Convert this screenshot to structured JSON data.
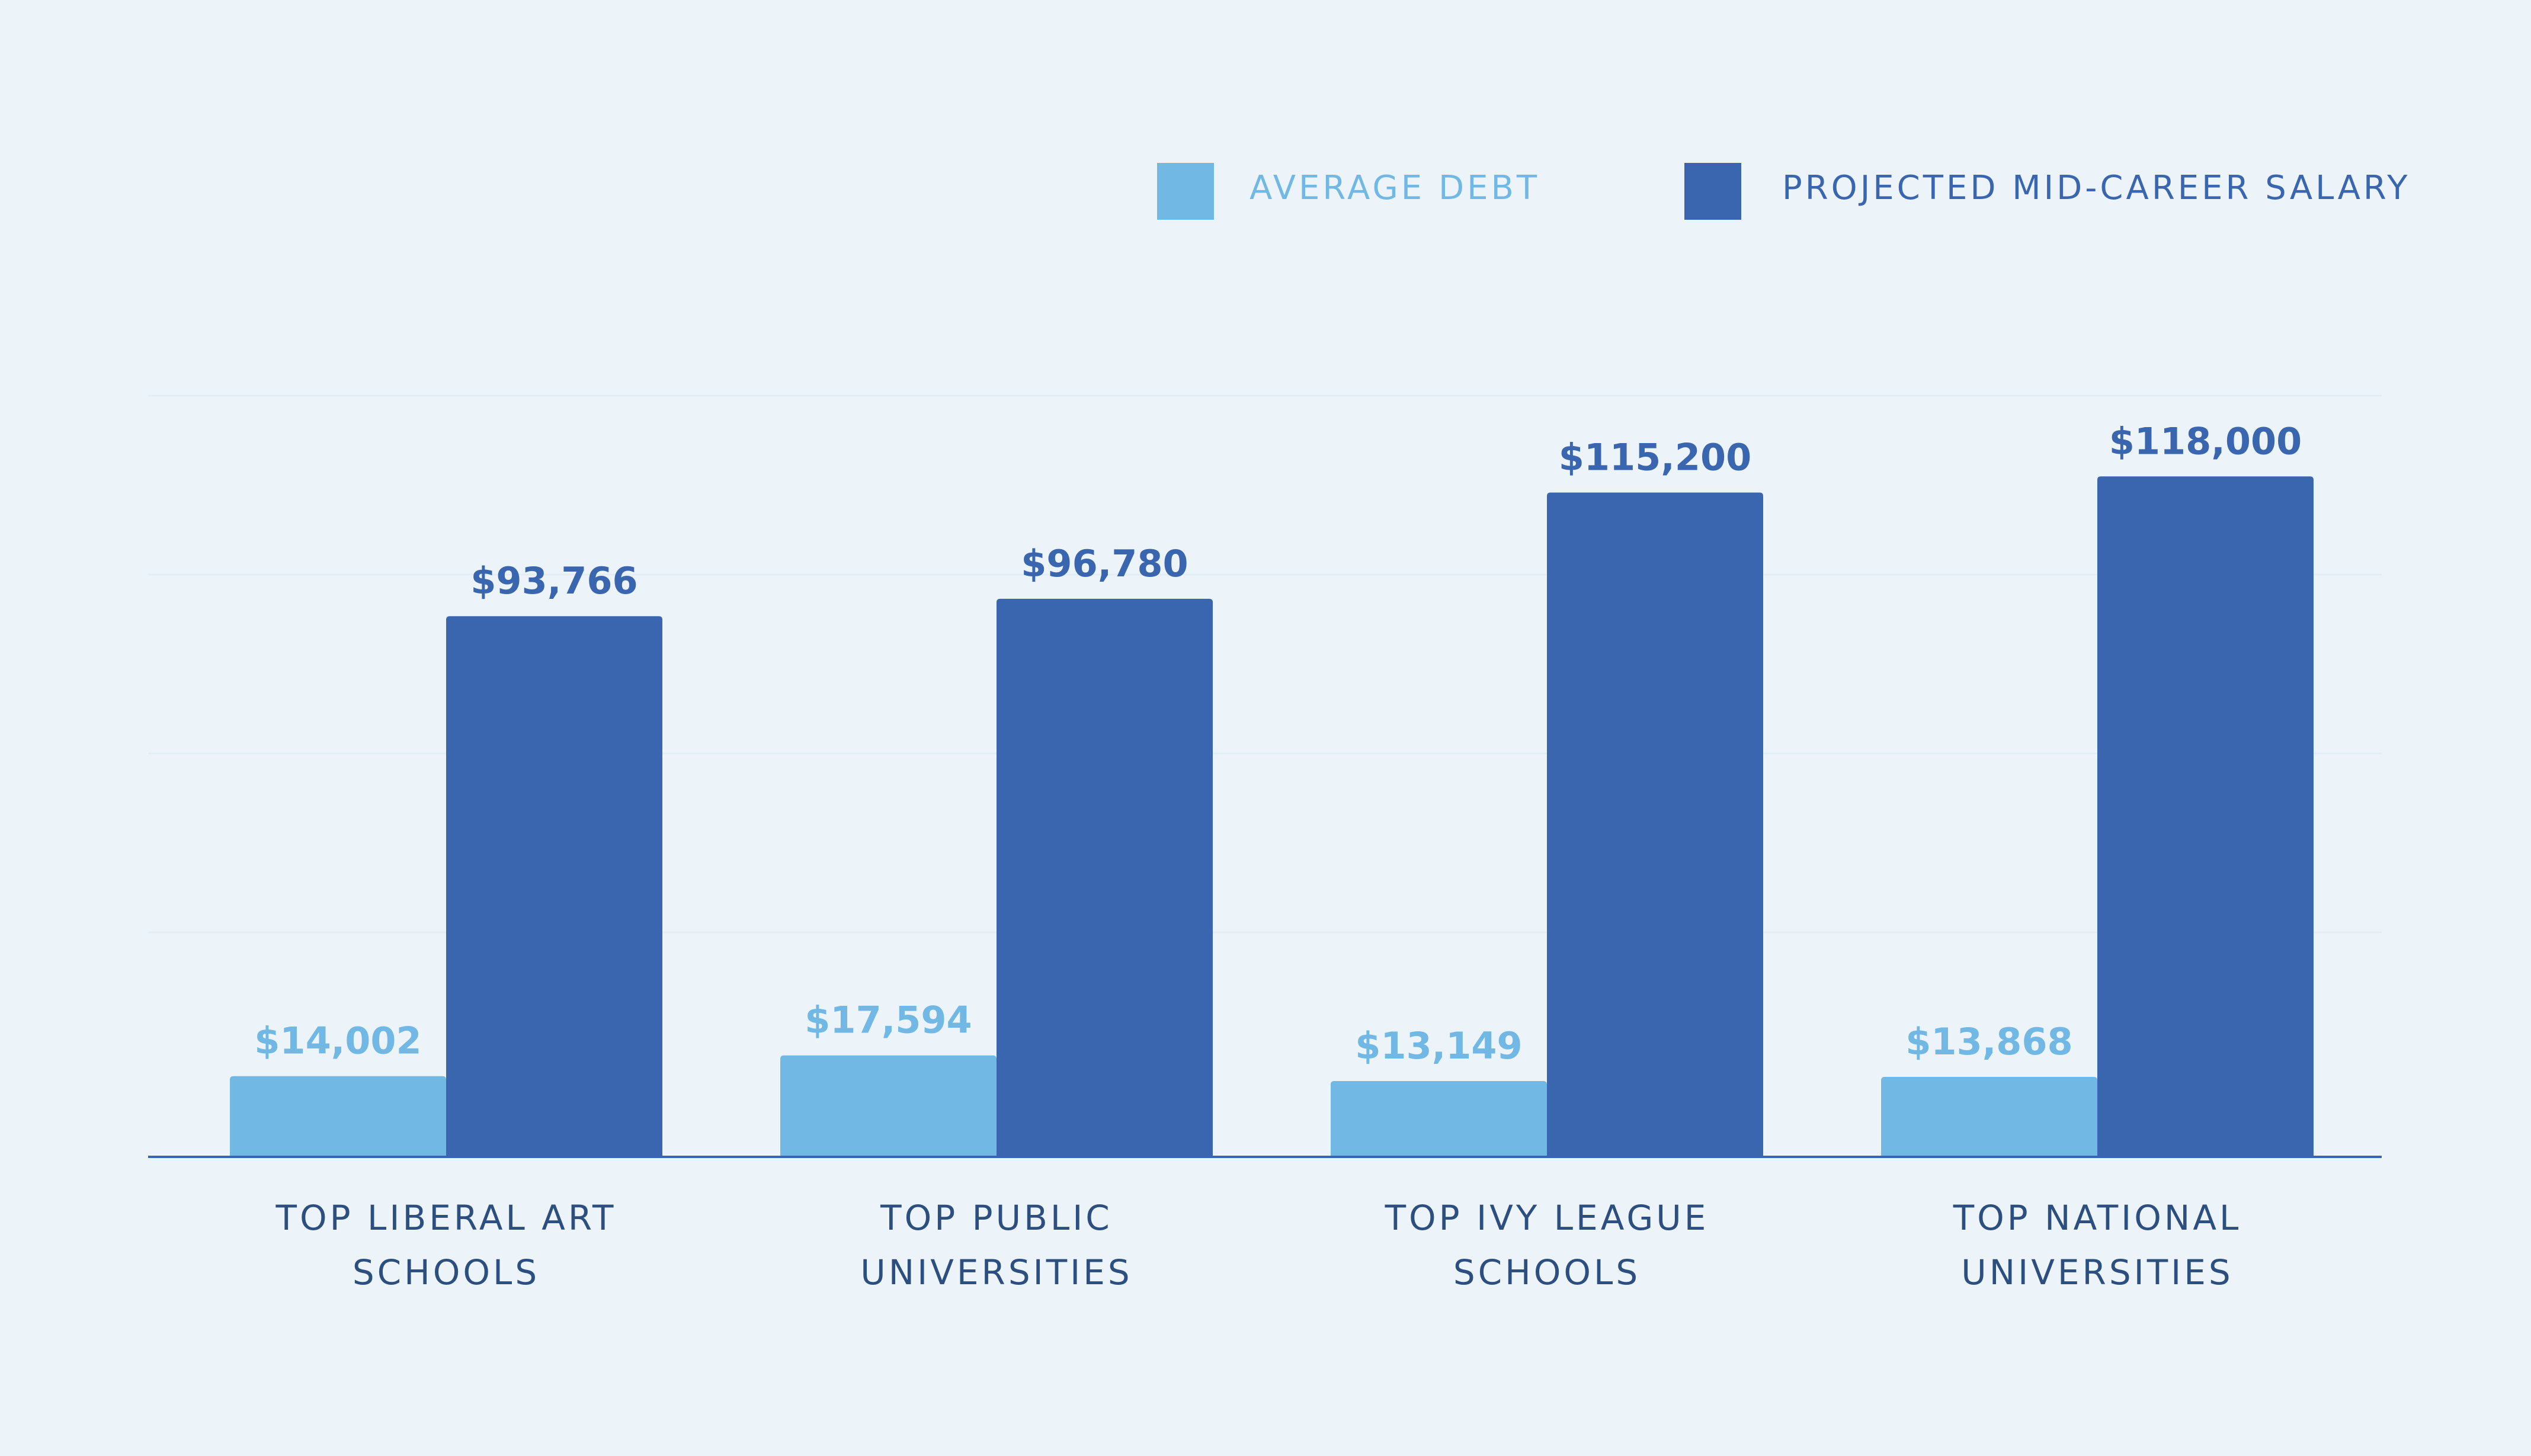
{
  "chart_data": {
    "type": "bar",
    "categories": [
      [
        "TOP LIBERAL ART",
        "SCHOOLS"
      ],
      [
        "TOP PUBLIC",
        "UNIVERSITIES"
      ],
      [
        "TOP IVY LEAGUE",
        "SCHOOLS"
      ],
      [
        "TOP NATIONAL",
        "UNIVERSITIES"
      ]
    ],
    "series": [
      {
        "name": "AVERAGE DEBT",
        "values": [
          14002,
          17594,
          13149,
          13868
        ],
        "labels": [
          "$14,002",
          "$17,594",
          "$13,149",
          "$13,868"
        ],
        "color": "#71b8e5"
      },
      {
        "name": "PROJECTED MID-CAREER SALARY",
        "values": [
          93766,
          96780,
          115200,
          118000
        ],
        "labels": [
          "$93,766",
          "$96,780",
          "$115,200",
          "$118,000"
        ],
        "color": "#3a66af"
      }
    ],
    "ylim": [
      0,
      132000
    ],
    "grid": true,
    "legend_position": "top-right"
  },
  "colors": {
    "background": "#ecf4fa",
    "axis": "#3a66af",
    "gridline": "#e3edf5",
    "category_text": "#2c4f80"
  }
}
